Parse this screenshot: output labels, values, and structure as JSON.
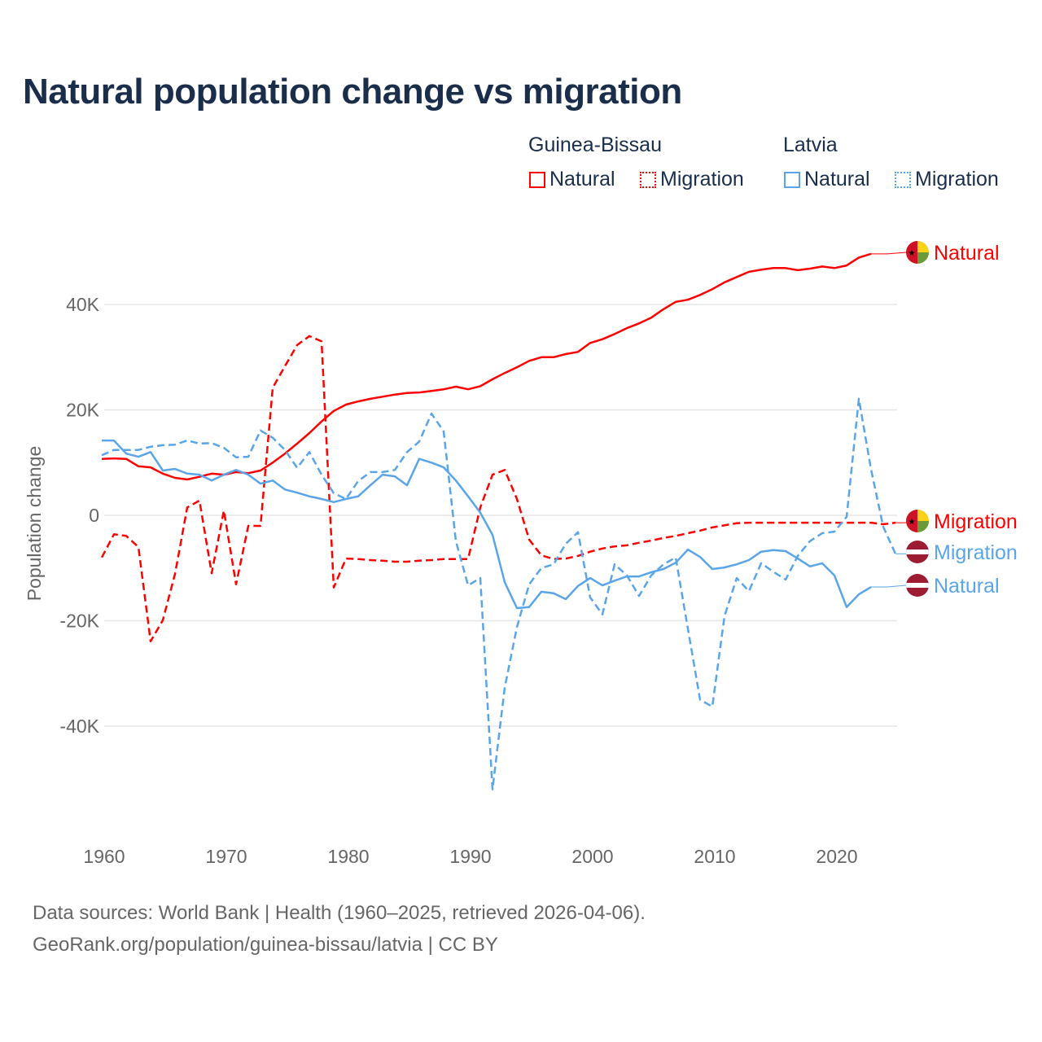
{
  "title": "Natural population change vs migration",
  "legend": {
    "groups": [
      {
        "name": "Guinea-Bissau",
        "items": [
          "Natural",
          "Migration"
        ],
        "color": "#ff0000"
      },
      {
        "name": "Latvia",
        "items": [
          "Natural",
          "Migration"
        ],
        "color": "#5aa5ea"
      }
    ]
  },
  "footer": {
    "line1": "Data sources: World Bank | Health (1960–2025, retrieved 2026-04-06).",
    "line2": "GeoRank.org/population/guinea-bissau/latvia | CC BY"
  },
  "chart_data": {
    "type": "line",
    "title": "Natural population change vs migration",
    "xlabel": "",
    "ylabel": "Population change",
    "xlim": [
      1960,
      2025
    ],
    "ylim": [
      -55000,
      52000
    ],
    "x_ticks": [
      {
        "value": 1960,
        "label": "1960"
      },
      {
        "value": 1970,
        "label": "1970"
      },
      {
        "value": 1980,
        "label": "1980"
      },
      {
        "value": 1990,
        "label": "1990"
      },
      {
        "value": 2000,
        "label": "2000"
      },
      {
        "value": 2010,
        "label": "2010"
      },
      {
        "value": 2020,
        "label": "2020"
      }
    ],
    "y_ticks": [
      {
        "value": 40000,
        "label": "40K"
      },
      {
        "value": 20000,
        "label": "20K"
      },
      {
        "value": 0,
        "label": "0"
      },
      {
        "value": -20000,
        "label": "-20K"
      },
      {
        "value": -40000,
        "label": "-40K"
      }
    ],
    "grid": true,
    "legend_position": "top-right",
    "series": [
      {
        "name": "Guinea-Bissau Natural",
        "end_label": "Natural",
        "color": "#ff0000",
        "dash": false,
        "flag": "guinea-bissau",
        "start": 1960,
        "values": [
          10.7,
          10.8,
          10.7,
          9.3,
          9.1,
          7.9,
          7.1,
          6.8,
          7.3,
          7.9,
          7.7,
          8.2,
          8.0,
          8.5,
          10.0,
          11.7,
          13.6,
          15.6,
          17.8,
          19.8,
          21.0,
          21.6,
          22.1,
          22.5,
          22.9,
          23.2,
          23.3,
          23.6,
          23.9,
          24.4,
          23.9,
          24.5,
          25.8,
          27.0,
          28.1,
          29.3,
          30.0,
          30.0,
          30.6,
          31.0,
          32.7,
          33.4,
          34.4,
          35.5,
          36.4,
          37.5,
          39.1,
          40.5,
          40.9,
          41.8,
          42.9,
          44.2,
          45.2,
          46.2,
          46.6,
          46.9,
          46.9,
          46.5,
          46.8,
          47.2,
          46.9,
          47.4,
          48.9,
          49.6
        ]
      },
      {
        "name": "Guinea-Bissau Migration",
        "end_label": "Migration",
        "color": "#ff0000",
        "dash": true,
        "flag": "guinea-bissau",
        "start": 1960,
        "values": [
          -8.0,
          -3.6,
          -3.9,
          -6.0,
          -23.9,
          -19.9,
          -11.1,
          1.5,
          2.8,
          -11.0,
          0.9,
          -13.1,
          -2.0,
          -2.0,
          24.2,
          28.3,
          32.3,
          34.0,
          33.0,
          -13.7,
          -8.2,
          -8.3,
          -8.5,
          -8.6,
          -8.8,
          -8.8,
          -8.6,
          -8.5,
          -8.3,
          -8.3,
          -8.3,
          1.5,
          7.7,
          8.6,
          3.1,
          -4.6,
          -7.6,
          -8.3,
          -8.2,
          -7.7,
          -6.9,
          -6.3,
          -5.9,
          -5.7,
          -5.2,
          -4.8,
          -4.3,
          -3.9,
          -3.4,
          -2.9,
          -2.3,
          -1.9,
          -1.5,
          -1.4,
          -1.4,
          -1.4,
          -1.4,
          -1.4,
          -1.4,
          -1.4,
          -1.4,
          -1.4,
          -1.4,
          -1.4,
          -1.7,
          -1.4
        ]
      },
      {
        "name": "Latvia Natural",
        "end_label": "Natural",
        "color": "#5aa5ea",
        "dash": false,
        "flag": "latvia",
        "start": 1960,
        "values": [
          14.2,
          14.2,
          11.7,
          11.1,
          12.0,
          8.5,
          8.8,
          7.9,
          7.7,
          6.6,
          7.7,
          8.6,
          7.7,
          6.0,
          6.6,
          4.9,
          4.3,
          3.6,
          3.1,
          2.5,
          3.1,
          3.6,
          5.7,
          7.7,
          7.4,
          5.7,
          10.7,
          10.0,
          9.1,
          6.6,
          3.6,
          0.5,
          -3.7,
          -12.7,
          -17.6,
          -17.4,
          -14.5,
          -14.8,
          -15.9,
          -13.4,
          -11.9,
          -13.3,
          -12.4,
          -11.6,
          -11.6,
          -10.8,
          -10.2,
          -9.0,
          -6.5,
          -7.9,
          -10.2,
          -9.9,
          -9.3,
          -8.5,
          -6.9,
          -6.6,
          -6.8,
          -8.2,
          -9.7,
          -9.1,
          -11.4,
          -17.4,
          -15.0,
          -13.6
        ]
      },
      {
        "name": "Latvia Migration",
        "end_label": "Migration",
        "color": "#5aa5ea",
        "dash": true,
        "flag": "latvia",
        "start": 1960,
        "values": [
          11.4,
          12.4,
          12.4,
          12.4,
          13.0,
          13.3,
          13.4,
          14.2,
          13.6,
          13.7,
          12.8,
          11.0,
          11.1,
          16.1,
          14.7,
          12.4,
          9.0,
          12.0,
          7.7,
          4.2,
          3.1,
          6.5,
          8.2,
          8.2,
          8.6,
          12.0,
          14.0,
          19.3,
          15.9,
          -4.9,
          -13.3,
          -11.9,
          -52.0,
          -32.7,
          -21.2,
          -13.1,
          -10.0,
          -9.3,
          -5.4,
          -3.2,
          -15.6,
          -18.8,
          -9.3,
          -11.4,
          -15.3,
          -11.4,
          -9.3,
          -8.0,
          -21.5,
          -35.0,
          -36.3,
          -19.1,
          -11.9,
          -14.4,
          -9.1,
          -10.7,
          -12.2,
          -7.7,
          -4.9,
          -3.4,
          -3.1,
          -0.3,
          22.1,
          8.7,
          -2.2,
          -7.3
        ]
      }
    ],
    "value_unit": "thousands"
  }
}
